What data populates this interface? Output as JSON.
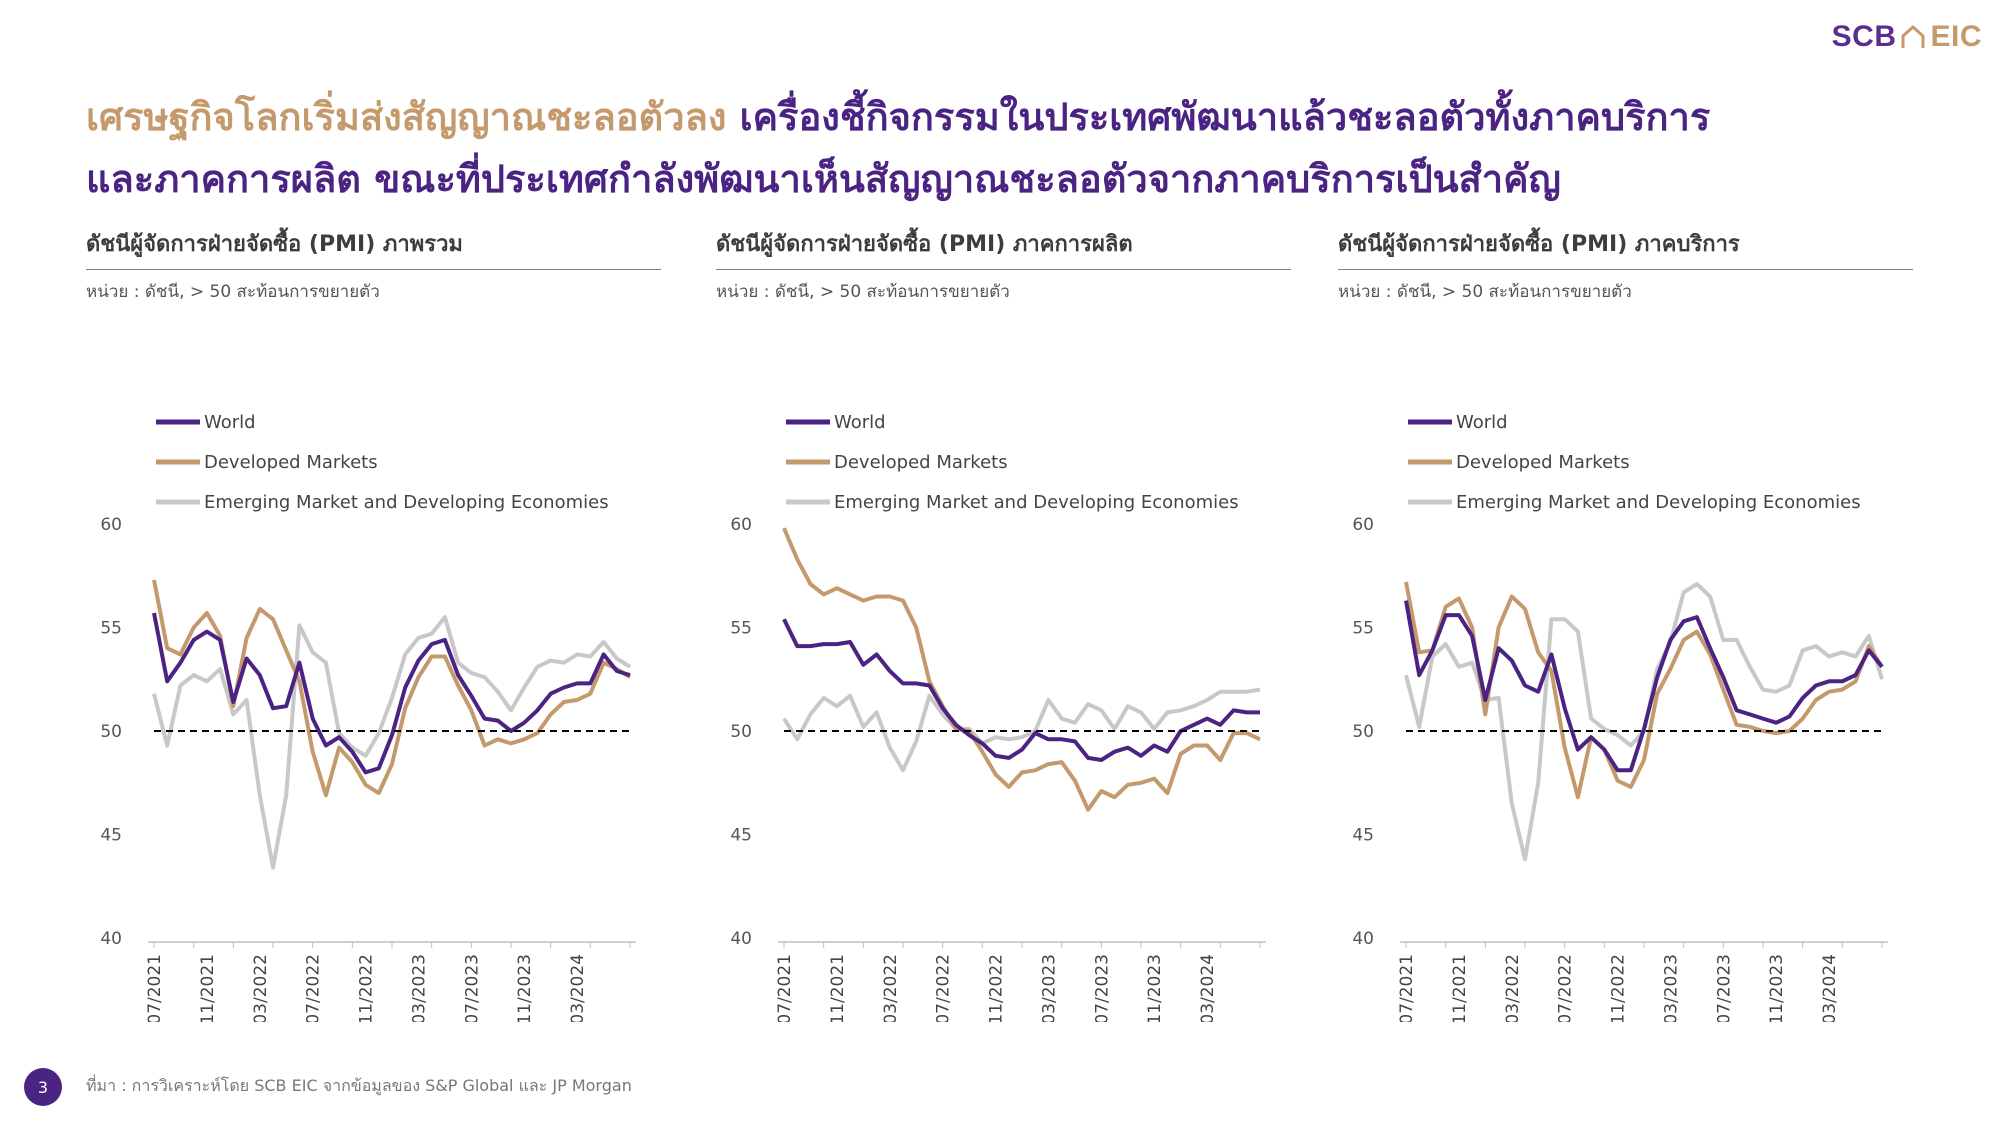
{
  "brand": {
    "part1": "SCB",
    "part2": "EIC",
    "icon": "house-icon"
  },
  "headline": {
    "gold": "เศรษฐกิจโลกเริ่มส่งสัญญาณชะลอตัวลง",
    "purple1": " เครื่องชี้กิจกรรมในประเทศพัฒนาแล้วชะลอตัวทั้งภาคบริการ",
    "purple2": "และภาคการผลิต ขณะที่ประเทศกำลังพัฒนาเห็นสัญญาณชะลอตัวจากภาคบริการเป็นสำคัญ"
  },
  "colors": {
    "world": "#4b2383",
    "dm": "#c49a6c",
    "em": "#c8c8c8",
    "ref": "#000000"
  },
  "legend": [
    "World",
    "Developed Markets",
    "Emerging Market and Developing Economies"
  ],
  "footer": {
    "source": "ที่มา : การวิเคราะห์โดย SCB EIC จากข้อมูลของ S&P Global และ JP Morgan",
    "page": "3"
  },
  "panels": [
    {
      "title": "ดัชนีผู้จัดการฝ่ายจัดซื้อ (PMI) ภาพรวม",
      "unit": "หน่วย : ดัชนี, > 50 สะท้อนการขยายตัว"
    },
    {
      "title": "ดัชนีผู้จัดการฝ่ายจัดซื้อ (PMI) ภาคการผลิต",
      "unit": "หน่วย : ดัชนี, > 50 สะท้อนการขยายตัว"
    },
    {
      "title": "ดัชนีผู้จัดการฝ่ายจัดซื้อ (PMI) ภาคบริการ",
      "unit": "หน่วย : ดัชนี, > 50 สะท้อนการขยายตัว"
    }
  ],
  "chart_data": [
    {
      "type": "line",
      "ylim": [
        40,
        60
      ],
      "yticks": [
        40,
        45,
        50,
        55,
        60
      ],
      "reference_line": 50,
      "xtick_labels": [
        "07/2021",
        "11/2021",
        "03/2022",
        "07/2022",
        "11/2022",
        "03/2023",
        "07/2023",
        "11/2023",
        "03/2024"
      ],
      "x": [
        "07/2021",
        "08/2021",
        "09/2021",
        "10/2021",
        "11/2021",
        "12/2021",
        "01/2022",
        "02/2022",
        "03/2022",
        "04/2022",
        "05/2022",
        "06/2022",
        "07/2022",
        "08/2022",
        "09/2022",
        "10/2022",
        "11/2022",
        "12/2022",
        "01/2023",
        "02/2023",
        "03/2023",
        "04/2023",
        "05/2023",
        "06/2023",
        "07/2023",
        "08/2023",
        "09/2023",
        "10/2023",
        "11/2023",
        "12/2023",
        "01/2024",
        "02/2024",
        "03/2024",
        "04/2024",
        "05/2024",
        "06/2024",
        "07/2024"
      ],
      "series": [
        {
          "name": "World",
          "values": [
            55.7,
            52.4,
            53.3,
            54.4,
            54.8,
            54.4,
            51.4,
            53.5,
            52.7,
            51.1,
            51.2,
            53.3,
            50.6,
            49.3,
            49.7,
            49.0,
            48.0,
            48.2,
            49.8,
            52.1,
            53.4,
            54.2,
            54.4,
            52.7,
            51.7,
            50.6,
            50.5,
            50.0,
            50.4,
            51.0,
            51.8,
            52.1,
            52.3,
            52.3,
            53.7,
            52.9,
            52.7
          ]
        },
        {
          "name": "Developed Markets",
          "values": [
            57.3,
            54.0,
            53.7,
            55.0,
            55.7,
            54.6,
            51.2,
            54.5,
            55.9,
            55.4,
            53.9,
            52.4,
            49.0,
            46.9,
            49.2,
            48.5,
            47.4,
            47.0,
            48.4,
            51.1,
            52.6,
            53.6,
            53.6,
            52.2,
            51.0,
            49.3,
            49.6,
            49.4,
            49.6,
            49.9,
            50.8,
            51.4,
            51.5,
            51.8,
            53.3,
            53.0,
            52.6
          ]
        },
        {
          "name": "Emerging Market and Developing Economies",
          "values": [
            51.8,
            49.3,
            52.2,
            52.7,
            52.4,
            53.0,
            50.8,
            51.5,
            46.9,
            43.4,
            46.9,
            55.1,
            53.8,
            53.3,
            49.9,
            49.2,
            48.8,
            49.9,
            51.6,
            53.7,
            54.5,
            54.7,
            55.5,
            53.3,
            52.8,
            52.6,
            51.9,
            51.0,
            52.1,
            53.1,
            53.4,
            53.3,
            53.7,
            53.6,
            54.3,
            53.5,
            53.1
          ]
        }
      ]
    },
    {
      "type": "line",
      "ylim": [
        40,
        60
      ],
      "yticks": [
        40,
        45,
        50,
        55,
        60
      ],
      "reference_line": 50,
      "xtick_labels": [
        "07/2021",
        "11/2021",
        "03/2022",
        "07/2022",
        "11/2022",
        "03/2023",
        "07/2023",
        "11/2023",
        "03/2024"
      ],
      "x": [
        "07/2021",
        "08/2021",
        "09/2021",
        "10/2021",
        "11/2021",
        "12/2021",
        "01/2022",
        "02/2022",
        "03/2022",
        "04/2022",
        "05/2022",
        "06/2022",
        "07/2022",
        "08/2022",
        "09/2022",
        "10/2022",
        "11/2022",
        "12/2022",
        "01/2023",
        "02/2023",
        "03/2023",
        "04/2023",
        "05/2023",
        "06/2023",
        "07/2023",
        "08/2023",
        "09/2023",
        "10/2023",
        "11/2023",
        "12/2023",
        "01/2024",
        "02/2024",
        "03/2024",
        "04/2024",
        "05/2024",
        "06/2024",
        "07/2024"
      ],
      "series": [
        {
          "name": "World",
          "values": [
            55.4,
            54.1,
            54.1,
            54.2,
            54.2,
            54.3,
            53.2,
            53.7,
            52.9,
            52.3,
            52.3,
            52.2,
            51.1,
            50.3,
            49.8,
            49.4,
            48.8,
            48.7,
            49.1,
            49.9,
            49.6,
            49.6,
            49.5,
            48.7,
            48.6,
            49.0,
            49.2,
            48.8,
            49.3,
            49.0,
            50.0,
            50.3,
            50.6,
            50.3,
            51.0,
            50.9,
            50.9
          ]
        },
        {
          "name": "Developed Markets",
          "values": [
            59.8,
            58.3,
            57.1,
            56.6,
            56.9,
            56.6,
            56.3,
            56.5,
            56.5,
            56.3,
            55.0,
            52.4,
            51.2,
            50.1,
            50.0,
            49.0,
            47.9,
            47.3,
            48.0,
            48.1,
            48.4,
            48.5,
            47.6,
            46.2,
            47.1,
            46.8,
            47.4,
            47.5,
            47.7,
            47.0,
            48.9,
            49.3,
            49.3,
            48.6,
            49.9,
            49.9,
            49.6
          ]
        },
        {
          "name": "Emerging Market and Developing Economies",
          "values": [
            50.6,
            49.6,
            50.8,
            51.6,
            51.2,
            51.7,
            50.2,
            50.9,
            49.2,
            48.1,
            49.5,
            51.7,
            50.8,
            50.1,
            50.1,
            49.4,
            49.7,
            49.6,
            49.7,
            50.0,
            51.5,
            50.6,
            50.4,
            51.3,
            51.0,
            50.1,
            51.2,
            50.9,
            50.1,
            50.9,
            51.0,
            51.2,
            51.5,
            51.9,
            51.9,
            51.9,
            52.0
          ]
        }
      ]
    },
    {
      "type": "line",
      "ylim": [
        40,
        60
      ],
      "yticks": [
        40,
        45,
        50,
        55,
        60
      ],
      "reference_line": 50,
      "xtick_labels": [
        "07/2021",
        "11/2021",
        "03/2022",
        "07/2022",
        "11/2022",
        "03/2023",
        "07/2023",
        "11/2023",
        "03/2024"
      ],
      "x": [
        "07/2021",
        "08/2021",
        "09/2021",
        "10/2021",
        "11/2021",
        "12/2021",
        "01/2022",
        "02/2022",
        "03/2022",
        "04/2022",
        "05/2022",
        "06/2022",
        "07/2022",
        "08/2022",
        "09/2022",
        "10/2022",
        "11/2022",
        "12/2022",
        "01/2023",
        "02/2023",
        "03/2023",
        "04/2023",
        "05/2023",
        "06/2023",
        "07/2023",
        "08/2023",
        "09/2023",
        "10/2023",
        "11/2023",
        "12/2023",
        "01/2024",
        "02/2024",
        "03/2024",
        "04/2024",
        "05/2024",
        "06/2024",
        "07/2024"
      ],
      "series": [
        {
          "name": "World",
          "values": [
            56.3,
            52.7,
            53.9,
            55.6,
            55.6,
            54.6,
            51.5,
            54.0,
            53.4,
            52.2,
            51.9,
            53.7,
            51.1,
            49.1,
            49.7,
            49.1,
            48.1,
            48.1,
            50.1,
            52.6,
            54.4,
            55.3,
            55.5,
            54.0,
            52.6,
            51.0,
            50.8,
            50.6,
            50.4,
            50.7,
            51.6,
            52.2,
            52.4,
            52.4,
            52.7,
            53.9,
            53.1
          ]
        },
        {
          "name": "Developed Markets",
          "values": [
            57.2,
            53.8,
            53.9,
            56.0,
            56.4,
            55.0,
            50.8,
            55.0,
            56.5,
            55.9,
            53.8,
            52.9,
            49.2,
            46.8,
            49.7,
            49.1,
            47.6,
            47.3,
            48.6,
            51.8,
            53.0,
            54.4,
            54.8,
            53.7,
            52.0,
            50.3,
            50.2,
            50.0,
            49.9,
            50.0,
            50.6,
            51.5,
            51.9,
            52.0,
            52.4,
            54.1,
            53.1
          ]
        },
        {
          "name": "Emerging Market and Developing Economies",
          "values": [
            52.7,
            50.2,
            53.6,
            54.2,
            53.1,
            53.3,
            51.5,
            51.6,
            46.5,
            43.8,
            47.5,
            55.4,
            55.4,
            54.8,
            50.6,
            50.1,
            49.8,
            49.3,
            50.0,
            53.0,
            54.3,
            56.7,
            57.1,
            56.5,
            54.4,
            54.4,
            53.1,
            52.0,
            51.9,
            52.2,
            53.9,
            54.1,
            53.6,
            53.8,
            53.6,
            54.6,
            52.5
          ]
        }
      ]
    }
  ]
}
